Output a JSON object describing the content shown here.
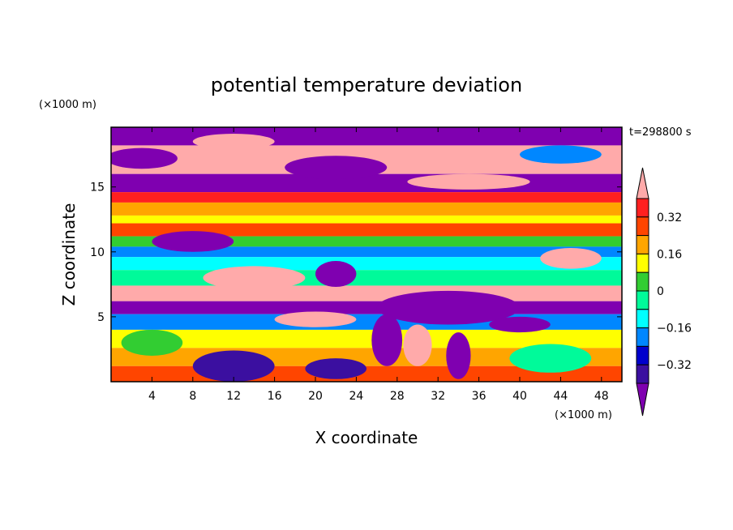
{
  "chart_data": {
    "type": "heatmap",
    "title": "potential temperature deviation",
    "xlabel": "X coordinate",
    "ylabel": "Z coordinate",
    "x_unit": "(×1000 m)",
    "y_unit": "(×1000 m)",
    "time_label": "t=298800 s",
    "xlim": [
      0,
      50
    ],
    "ylim": [
      0,
      19.6
    ],
    "x_ticks": [
      4,
      8,
      12,
      16,
      20,
      24,
      28,
      32,
      36,
      40,
      44,
      48
    ],
    "y_ticks": [
      5,
      10,
      15
    ],
    "colorbar": {
      "levels": [
        -0.4,
        -0.32,
        -0.24,
        -0.16,
        -0.08,
        0,
        0.08,
        0.16,
        0.24,
        0.32,
        0.4
      ],
      "tick_labels": [
        "0.32",
        "0.16",
        "0",
        "−0.16",
        "−0.32"
      ],
      "tick_values": [
        0.32,
        0.16,
        0,
        -0.16,
        -0.32
      ],
      "colors": [
        "#7f00b0",
        "#3b0fa0",
        "#0000cd",
        "#0087ff",
        "#00ffff",
        "#00fa9a",
        "#32cd32",
        "#ffff00",
        "#ffa500",
        "#ff4500",
        "#ff2020",
        "#ffaaaa"
      ],
      "extend": "both"
    },
    "field_bands": [
      {
        "z": [
          18.2,
          19.6
        ],
        "value": -0.45
      },
      {
        "z": [
          16.0,
          18.2
        ],
        "value": 0.45
      },
      {
        "z": [
          14.6,
          16.0
        ],
        "value": -0.45
      },
      {
        "z": [
          13.8,
          14.6
        ],
        "value": 0.36
      },
      {
        "z": [
          12.8,
          13.8
        ],
        "value": 0.2
      },
      {
        "z": [
          12.2,
          12.8
        ],
        "value": 0.12
      },
      {
        "z": [
          11.2,
          12.2
        ],
        "value": 0.28
      },
      {
        "z": [
          10.4,
          11.2
        ],
        "value": 0.04
      },
      {
        "z": [
          9.6,
          10.4
        ],
        "value": -0.2
      },
      {
        "z": [
          8.6,
          9.6
        ],
        "value": -0.12
      },
      {
        "z": [
          7.4,
          8.6
        ],
        "value": -0.06
      },
      {
        "z": [
          6.2,
          7.4
        ],
        "value": 0.45
      },
      {
        "z": [
          5.2,
          6.2
        ],
        "value": -0.45
      },
      {
        "z": [
          4.0,
          5.2
        ],
        "value": -0.2
      },
      {
        "z": [
          2.6,
          4.0
        ],
        "value": 0.12
      },
      {
        "z": [
          1.2,
          2.6
        ],
        "value": 0.2
      },
      {
        "z": [
          0.0,
          1.2
        ],
        "value": 0.28
      }
    ],
    "field_patches": [
      {
        "x": 3,
        "z": 17.2,
        "rx": 3.5,
        "rz": 0.8,
        "value": -0.45
      },
      {
        "x": 12,
        "z": 18.5,
        "rx": 4,
        "rz": 0.6,
        "value": 0.45
      },
      {
        "x": 22,
        "z": 16.5,
        "rx": 5,
        "rz": 0.9,
        "value": -0.45
      },
      {
        "x": 35,
        "z": 15.4,
        "rx": 6,
        "rz": 0.6,
        "value": 0.45
      },
      {
        "x": 44,
        "z": 17.5,
        "rx": 4,
        "rz": 0.7,
        "value": -0.2
      },
      {
        "x": 8,
        "z": 10.8,
        "rx": 4,
        "rz": 0.8,
        "value": -0.45
      },
      {
        "x": 14,
        "z": 8.0,
        "rx": 5,
        "rz": 0.9,
        "value": 0.45
      },
      {
        "x": 22,
        "z": 8.3,
        "rx": 2,
        "rz": 1.0,
        "value": -0.45
      },
      {
        "x": 45,
        "z": 9.5,
        "rx": 3,
        "rz": 0.8,
        "value": 0.45
      },
      {
        "x": 33,
        "z": 5.7,
        "rx": 7,
        "rz": 1.3,
        "value": -0.45
      },
      {
        "x": 20,
        "z": 4.8,
        "rx": 4,
        "rz": 0.6,
        "value": 0.45
      },
      {
        "x": 27,
        "z": 3.2,
        "rx": 1.5,
        "rz": 2.0,
        "value": -0.45
      },
      {
        "x": 30,
        "z": 2.8,
        "rx": 1.4,
        "rz": 1.6,
        "value": 0.45
      },
      {
        "x": 34,
        "z": 2.0,
        "rx": 1.2,
        "rz": 1.8,
        "value": -0.45
      },
      {
        "x": 12,
        "z": 1.2,
        "rx": 4,
        "rz": 1.2,
        "value": -0.36
      },
      {
        "x": 4,
        "z": 3.0,
        "rx": 3,
        "rz": 1.0,
        "value": 0.04
      },
      {
        "x": 43,
        "z": 1.8,
        "rx": 4,
        "rz": 1.1,
        "value": -0.06
      },
      {
        "x": 22,
        "z": 1.0,
        "rx": 3,
        "rz": 0.8,
        "value": -0.36
      },
      {
        "x": 40,
        "z": 4.4,
        "rx": 3,
        "rz": 0.6,
        "value": -0.45
      }
    ]
  }
}
